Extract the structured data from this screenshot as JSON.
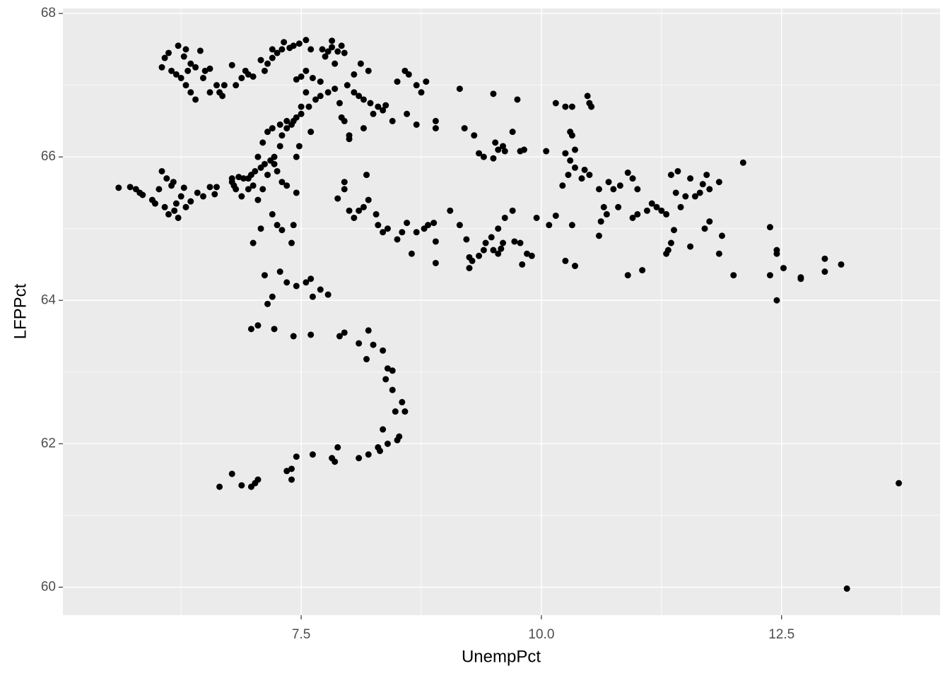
{
  "chart_data": {
    "type": "scatter",
    "x_label": "UnempPct",
    "y_label": "LFPPct",
    "xlim": [
      5.02,
      14.15
    ],
    "ylim": [
      59.61,
      68.07
    ],
    "xticks": [
      7.5,
      {
        "value": 10,
        "label": "10.0"
      },
      12.5
    ],
    "yticks": [
      60,
      62,
      64,
      66,
      68
    ],
    "x_minor": [
      6.25,
      8.75,
      11.25,
      13.75
    ],
    "y_minor": [
      61,
      63,
      65,
      67
    ],
    "grid": true,
    "color": "#000000",
    "panel_color": "#EBEBEB",
    "x": [
      5.6,
      5.72,
      5.78,
      5.82,
      5.85,
      5.95,
      5.98,
      6.02,
      6.05,
      6.1,
      6.15,
      6.08,
      6.12,
      6.18,
      6.2,
      6.22,
      6.25,
      6.28,
      6.35,
      6.42,
      6.48,
      6.55,
      6.62,
      6.78,
      6.82,
      6.6,
      6.17,
      6.3,
      6.05,
      6.08,
      6.12,
      6.15,
      6.22,
      6.28,
      6.3,
      6.35,
      6.25,
      6.3,
      6.35,
      6.4,
      6.45,
      6.48,
      6.5,
      6.55,
      6.55,
      6.62,
      6.65,
      6.68,
      6.7,
      6.4,
      6.32,
      6.2,
      6.78,
      6.82,
      6.88,
      6.92,
      6.95,
      7.0,
      7.08,
      7.12,
      7.15,
      7.2,
      7.25,
      7.3,
      7.38,
      7.42,
      7.48,
      7.32,
      7.2,
      7.55,
      7.6,
      7.5,
      7.45,
      7.55,
      7.62,
      7.7,
      7.75,
      7.78,
      7.82,
      7.88,
      7.92,
      7.95,
      7.82,
      7.72,
      8.12,
      8.05,
      7.98,
      7.85,
      7.55,
      7.5,
      7.45,
      7.4,
      7.35,
      7.3,
      7.28,
      7.22,
      7.18,
      7.12,
      7.08,
      7.02,
      6.98,
      6.95,
      6.9,
      6.85,
      7.05,
      7.1,
      7.15,
      7.2,
      7.28,
      7.35,
      7.42,
      7.5,
      7.58,
      7.65,
      7.7,
      7.78,
      7.85,
      7.9,
      7.95,
      7.6,
      7.45,
      7.48,
      7.25,
      7.15,
      7.0,
      6.95,
      6.88,
      7.05,
      7.1,
      7.22,
      7.3,
      7.35,
      6.78,
      6.8,
      8.2,
      8.05,
      8.1,
      8.15,
      8.22,
      8.3,
      8.38,
      8.5,
      8.58,
      8.62,
      8.7,
      8.75,
      8.8,
      8.6,
      8.45,
      8.35,
      8.25,
      8.15,
      8.0,
      7.92,
      8.0,
      9.15,
      9.5,
      9.75,
      9.2,
      8.7,
      8.9,
      8.9,
      9.3,
      9.35,
      9.4,
      9.5,
      9.52,
      9.55,
      9.6,
      9.62,
      9.7,
      9.78,
      9.82,
      10.05,
      10.15,
      10.25,
      10.32,
      10.48,
      10.5,
      10.52,
      10.3,
      10.32,
      10.35,
      10.3,
      10.25,
      10.35,
      10.45,
      10.42,
      10.5,
      10.28,
      10.22,
      10.6,
      10.7,
      10.75,
      10.82,
      10.9,
      10.95,
      11.0,
      10.65,
      10.8,
      10.68,
      10.62,
      10.95,
      11.0,
      11.1,
      11.15,
      11.2,
      11.25,
      11.3,
      11.35,
      11.42,
      11.4,
      11.45,
      11.5,
      11.55,
      11.6,
      11.65,
      11.68,
      11.72,
      11.75,
      11.85,
      12.1,
      11.7,
      11.75,
      11.88,
      11.85,
      11.55,
      11.35,
      11.32,
      11.3,
      11.38,
      11.05,
      10.9,
      10.6,
      12.0,
      12.38,
      12.45,
      12.45,
      12.52,
      12.38,
      12.45,
      12.7,
      12.7,
      12.95,
      12.95,
      13.12,
      13.72,
      13.18,
      7.88,
      7.95,
      8.0,
      8.05,
      8.1,
      8.15,
      8.2,
      8.18,
      8.28,
      8.3,
      8.35,
      8.4,
      8.5,
      8.55,
      8.6,
      8.7,
      8.78,
      8.82,
      8.88,
      8.9,
      8.9,
      8.65,
      9.05,
      9.15,
      9.22,
      9.25,
      9.28,
      9.35,
      9.4,
      9.42,
      9.48,
      9.5,
      9.55,
      9.58,
      9.6,
      9.55,
      9.62,
      9.72,
      9.78,
      9.8,
      9.85,
      9.9,
      9.95,
      10.08,
      10.15,
      10.25,
      10.32,
      10.35,
      9.7,
      9.25,
      7.95,
      7.2,
      7.25,
      7.3,
      7.08,
      7.0,
      7.4,
      7.42,
      7.45,
      7.45,
      7.28,
      7.35,
      7.12,
      7.2,
      7.15,
      7.05,
      6.98,
      7.22,
      7.42,
      7.55,
      7.6,
      7.62,
      7.7,
      7.78,
      7.6,
      7.9,
      7.95,
      8.1,
      8.2,
      8.25,
      8.35,
      8.18,
      8.4,
      8.45,
      8.38,
      8.45,
      8.55,
      8.48,
      8.58,
      8.52,
      8.5,
      8.35,
      8.4,
      8.3,
      8.32,
      8.2,
      8.1,
      7.88,
      7.82,
      7.85,
      7.62,
      7.45,
      7.4,
      7.35,
      7.4,
      7.05,
      7.02,
      6.98,
      6.88,
      6.78,
      6.65
    ],
    "values": [
      65.57,
      65.58,
      65.55,
      65.5,
      65.47,
      65.4,
      65.35,
      65.55,
      65.8,
      65.7,
      65.6,
      65.3,
      65.2,
      65.25,
      65.35,
      65.15,
      65.45,
      65.57,
      65.38,
      65.5,
      65.45,
      65.58,
      65.58,
      65.65,
      65.55,
      65.48,
      65.65,
      65.3,
      67.25,
      67.38,
      67.45,
      67.2,
      67.55,
      67.4,
      67.5,
      67.3,
      67.1,
      67.0,
      66.9,
      67.25,
      67.48,
      67.1,
      67.2,
      67.23,
      66.9,
      67.0,
      66.9,
      66.85,
      67.0,
      66.8,
      67.2,
      67.15,
      67.28,
      67.0,
      67.1,
      67.2,
      67.15,
      67.12,
      67.35,
      67.2,
      67.3,
      67.38,
      67.45,
      67.5,
      67.52,
      67.55,
      67.58,
      67.6,
      67.5,
      67.63,
      67.5,
      67.12,
      67.08,
      67.2,
      67.1,
      67.05,
      67.4,
      67.47,
      67.53,
      67.47,
      67.55,
      67.45,
      67.62,
      67.5,
      67.3,
      67.15,
      67.0,
      67.3,
      66.9,
      66.7,
      66.55,
      66.45,
      66.4,
      66.3,
      66.15,
      66.0,
      65.95,
      65.9,
      65.85,
      65.8,
      65.75,
      65.7,
      65.7,
      65.72,
      66.0,
      66.2,
      66.35,
      66.4,
      66.45,
      66.5,
      66.5,
      66.6,
      66.7,
      66.8,
      66.85,
      66.9,
      66.95,
      66.75,
      66.5,
      66.35,
      66.0,
      66.15,
      65.8,
      65.75,
      65.6,
      65.55,
      65.45,
      65.4,
      65.55,
      65.9,
      65.65,
      65.6,
      65.7,
      65.6,
      67.2,
      66.9,
      66.85,
      66.8,
      66.75,
      66.7,
      66.72,
      67.05,
      67.2,
      67.15,
      67.0,
      66.9,
      67.05,
      66.6,
      66.5,
      66.65,
      66.6,
      66.4,
      66.3,
      66.55,
      66.25,
      66.95,
      66.88,
      66.8,
      66.4,
      66.45,
      66.5,
      66.4,
      66.3,
      66.05,
      66.0,
      65.98,
      66.2,
      66.1,
      66.15,
      66.08,
      66.35,
      66.08,
      66.1,
      66.08,
      66.75,
      66.7,
      66.7,
      66.85,
      66.75,
      66.7,
      66.35,
      66.3,
      66.1,
      65.95,
      66.05,
      65.85,
      65.82,
      65.7,
      65.75,
      65.75,
      65.6,
      65.55,
      65.65,
      65.55,
      65.6,
      65.78,
      65.7,
      65.55,
      65.3,
      65.3,
      65.2,
      65.1,
      65.15,
      65.2,
      65.25,
      65.35,
      65.3,
      65.25,
      65.2,
      65.75,
      65.8,
      65.5,
      65.3,
      65.45,
      65.7,
      65.45,
      65.5,
      65.62,
      65.75,
      65.55,
      65.65,
      65.92,
      65.0,
      65.1,
      64.9,
      64.65,
      64.75,
      64.8,
      64.7,
      64.65,
      64.98,
      64.42,
      64.35,
      64.9,
      64.35,
      65.02,
      64.7,
      64.65,
      64.45,
      64.35,
      64.0,
      64.3,
      64.32,
      64.4,
      64.58,
      64.5,
      61.45,
      59.98,
      65.42,
      65.55,
      65.25,
      65.15,
      65.25,
      65.3,
      65.4,
      65.75,
      65.2,
      65.05,
      64.95,
      65.0,
      64.85,
      64.95,
      65.08,
      64.95,
      65.0,
      65.05,
      65.08,
      64.82,
      64.52,
      64.65,
      65.25,
      65.05,
      64.85,
      64.6,
      64.55,
      64.62,
      64.7,
      64.8,
      64.88,
      64.7,
      64.65,
      64.72,
      64.8,
      65.0,
      65.15,
      64.82,
      64.8,
      64.5,
      64.65,
      64.62,
      65.15,
      65.05,
      65.18,
      64.55,
      65.05,
      64.48,
      65.25,
      64.45,
      65.65,
      65.2,
      65.05,
      64.98,
      65.0,
      64.8,
      64.8,
      65.05,
      65.5,
      64.2,
      64.4,
      64.25,
      64.35,
      64.05,
      63.95,
      63.65,
      63.6,
      63.6,
      63.5,
      64.25,
      64.3,
      64.05,
      64.15,
      64.08,
      63.52,
      63.5,
      63.55,
      63.4,
      63.58,
      63.38,
      63.3,
      63.18,
      63.05,
      63.02,
      62.9,
      62.75,
      62.58,
      62.45,
      62.45,
      62.1,
      62.05,
      62.2,
      62.0,
      61.95,
      61.9,
      61.85,
      61.8,
      61.95,
      61.8,
      61.75,
      61.85,
      61.82,
      61.65,
      61.62,
      61.5,
      61.5,
      61.45,
      61.4,
      61.42,
      61.58,
      61.4
    ]
  }
}
